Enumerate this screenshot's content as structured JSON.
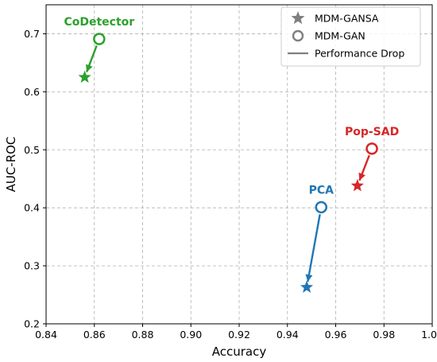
{
  "chart_data": {
    "type": "scatter",
    "xlabel": "Accuracy",
    "ylabel": "AUC-ROC",
    "xlim": [
      0.84,
      1.0
    ],
    "ylim": [
      0.2,
      0.75
    ],
    "xticks": [
      "0.84",
      "0.86",
      "0.88",
      "0.90",
      "0.92",
      "0.94",
      "0.96",
      "0.98",
      "1.00"
    ],
    "yticks": [
      "0.2",
      "0.3",
      "0.4",
      "0.5",
      "0.6",
      "0.7"
    ],
    "grid": true,
    "legend_position": "top-right",
    "legend": [
      {
        "label": "MDM-GANSA",
        "marker": "star"
      },
      {
        "label": "MDM-GAN",
        "marker": "circle"
      },
      {
        "label": "Performance Drop",
        "marker": "line"
      }
    ],
    "series": [
      {
        "name": "CoDetector",
        "color": "#2ca02c",
        "mdm_gan": {
          "x": 0.862,
          "y": 0.691
        },
        "mdm_gansa": {
          "x": 0.856,
          "y": 0.625
        }
      },
      {
        "name": "Pop-SAD",
        "color": "#d62728",
        "mdm_gan": {
          "x": 0.975,
          "y": 0.502
        },
        "mdm_gansa": {
          "x": 0.969,
          "y": 0.438
        }
      },
      {
        "name": "PCA",
        "color": "#1f77b4",
        "mdm_gan": {
          "x": 0.954,
          "y": 0.401
        },
        "mdm_gansa": {
          "x": 0.948,
          "y": 0.263
        }
      }
    ]
  }
}
